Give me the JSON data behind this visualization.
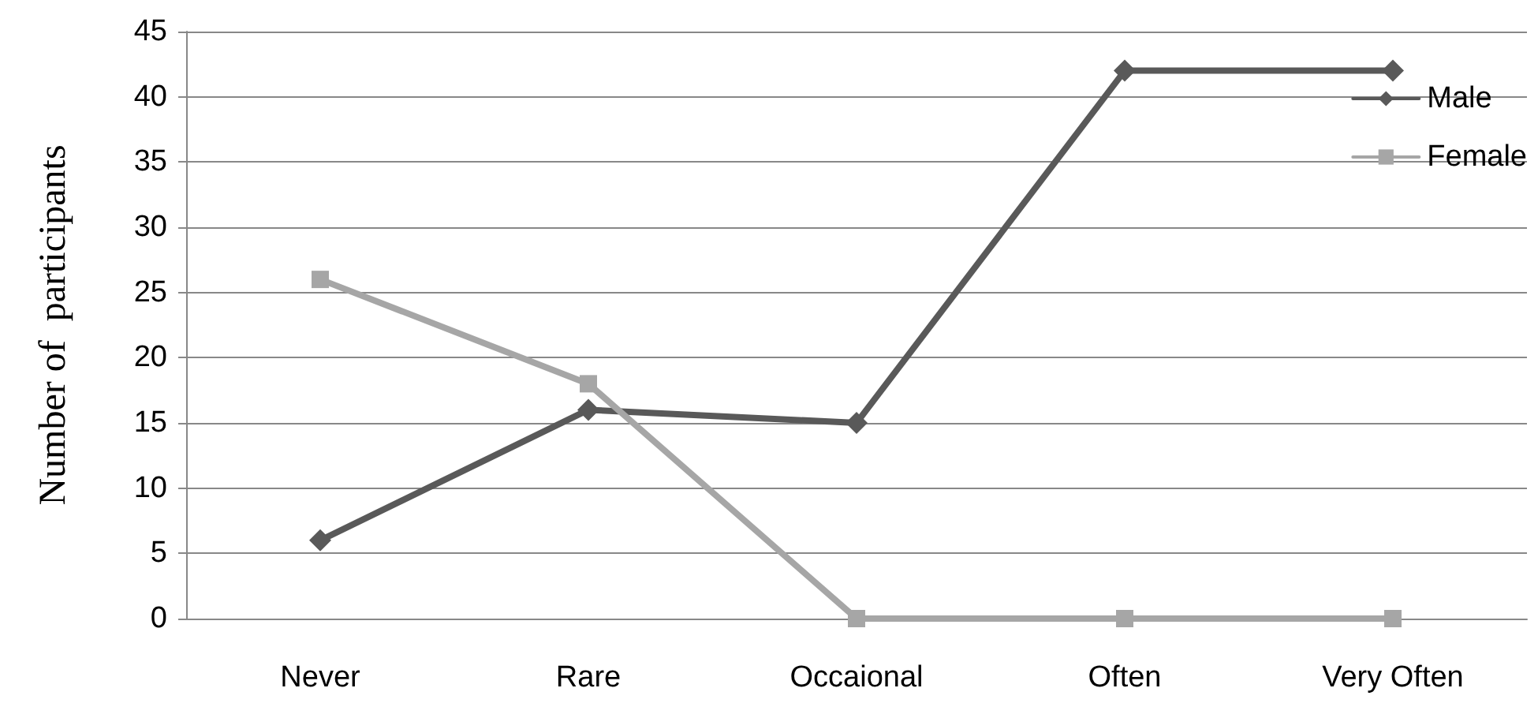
{
  "chart_data": {
    "type": "line",
    "ylabel": "Number of  participants",
    "categories": [
      "Never",
      "Rare",
      "Occaional",
      "Often",
      "Very Often"
    ],
    "series": [
      {
        "name": "Male",
        "color": "#595959",
        "marker": "diamond",
        "values": [
          6,
          16,
          15,
          42,
          42
        ]
      },
      {
        "name": "Female",
        "color": "#a6a6a6",
        "marker": "square",
        "values": [
          26,
          18,
          0,
          0,
          0
        ]
      }
    ],
    "ylim": [
      0,
      45
    ],
    "yticks": [
      0,
      5,
      10,
      15,
      20,
      25,
      30,
      35,
      40,
      45
    ],
    "grid": "y",
    "legend": "top right",
    "line_style": "solid"
  }
}
